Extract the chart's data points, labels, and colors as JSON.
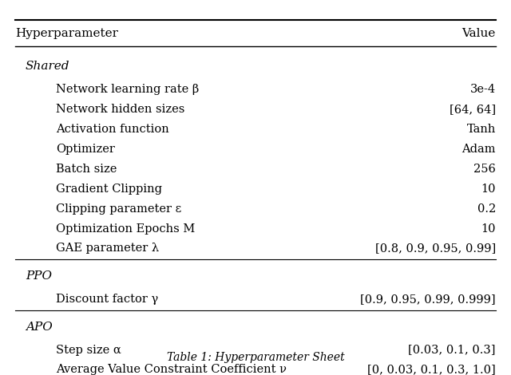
{
  "title": "Table 1: Hyperparameter Sheet",
  "col_header": [
    "Hyperparameter",
    "Value"
  ],
  "sections": [
    {
      "label": "Shared",
      "italic": true,
      "rows": [
        [
          "Network learning rate β",
          "3e-4"
        ],
        [
          "Network hidden sizes",
          "[64, 64]"
        ],
        [
          "Activation function",
          "Tanh"
        ],
        [
          "Optimizer",
          "Adam"
        ],
        [
          "Batch size",
          "256"
        ],
        [
          "Gradient Clipping",
          "10"
        ],
        [
          "Clipping parameter ε",
          "0.2"
        ],
        [
          "Optimization Epochs Μ",
          "10"
        ],
        [
          "GAE parameter λ",
          "[0.8, 0.9, 0.95, 0.99]"
        ]
      ]
    },
    {
      "label": "PPO",
      "italic": true,
      "rows": [
        [
          "Discount factor γ",
          "[0.9, 0.95, 0.99, 0.999]"
        ]
      ]
    },
    {
      "label": "APO",
      "italic": true,
      "rows": [
        [
          "Step size α",
          "[0.03, 0.1, 0.3]"
        ],
        [
          "Average Value Constraint Coefficient ν",
          "[0, 0.03, 0.1, 0.3, 1.0]"
        ]
      ]
    }
  ],
  "bg_color": "#ffffff",
  "text_color": "#000000",
  "header_fontsize": 11,
  "section_fontsize": 11,
  "row_fontsize": 10.5,
  "caption_fontsize": 10
}
